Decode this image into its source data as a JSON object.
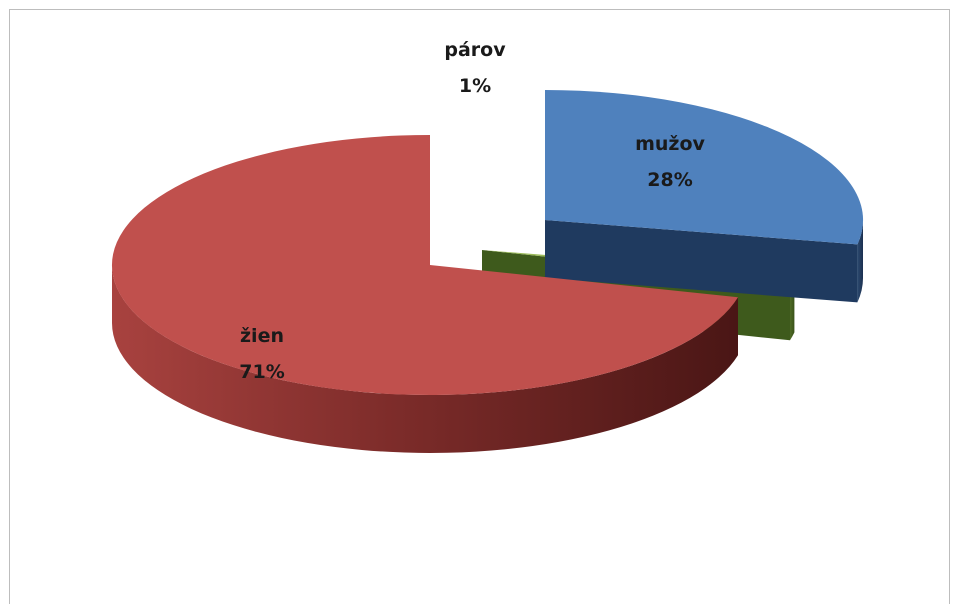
{
  "chart_data": {
    "type": "pie",
    "categories": [
      "mužov",
      "párov",
      "žien"
    ],
    "values": [
      28,
      1,
      71
    ],
    "value_labels": [
      "28%",
      "1%",
      "71%"
    ],
    "colors": {
      "mužov": "#4f81bd",
      "párov": "#9bbb59",
      "žien": "#c0504d"
    },
    "style": "3d-exploded"
  }
}
